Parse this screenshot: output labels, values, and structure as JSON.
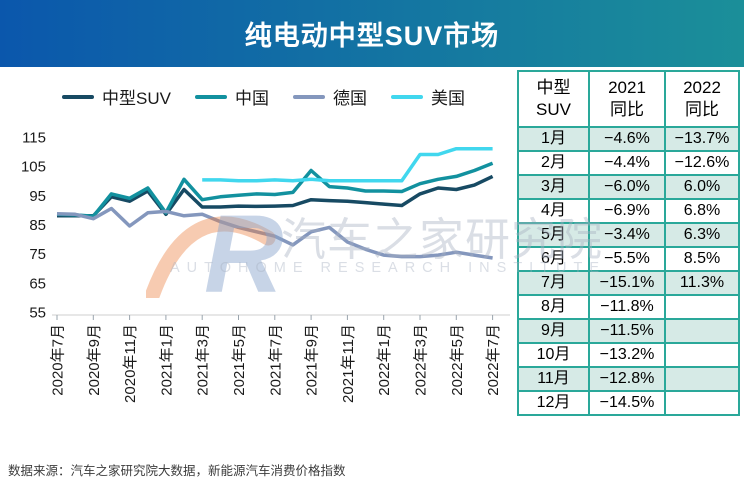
{
  "header": {
    "title": "纯电动中型SUV市场"
  },
  "legend": {
    "items": [
      {
        "label": "中型SUV",
        "color": "#174a63"
      },
      {
        "label": "中国",
        "color": "#12919f"
      },
      {
        "label": "德国",
        "color": "#8497bd"
      },
      {
        "label": "美国",
        "color": "#41d7ee"
      }
    ]
  },
  "chart_data": {
    "type": "line",
    "x": [
      "2020年7月",
      "2020年8月",
      "2020年9月",
      "2020年10月",
      "2020年11月",
      "2020年12月",
      "2021年1月",
      "2021年2月",
      "2021年3月",
      "2021年4月",
      "2021年5月",
      "2021年6月",
      "2021年7月",
      "2021年8月",
      "2021年9月",
      "2021年10月",
      "2021年11月",
      "2021年12月",
      "2022年1月",
      "2022年2月",
      "2022年3月",
      "2022年4月",
      "2022年5月",
      "2022年6月",
      "2022年7月"
    ],
    "x_tick_every": 2,
    "x_tick_labels": [
      "2020年7月",
      "2020年9月",
      "2020年11月",
      "2021年1月",
      "2021年3月",
      "2021年5月",
      "2021年7月",
      "2021年9月",
      "2021年11月",
      "2022年1月",
      "2022年3月",
      "2022年5月",
      "2022年7月"
    ],
    "ylim": [
      55,
      115
    ],
    "yticks": [
      115,
      105,
      95,
      85,
      75,
      65,
      55
    ],
    "grid": false,
    "legend_position": "top",
    "series": [
      {
        "name": "中型SUV",
        "color": "#174a63",
        "values": [
          88,
          88,
          88,
          94.5,
          93,
          96.5,
          88.5,
          97,
          91,
          91,
          91.3,
          91.2,
          91.3,
          91.5,
          93.5,
          93.2,
          93,
          92.5,
          92,
          91.5,
          95.5,
          97.5,
          97,
          98.5,
          101.5
        ]
      },
      {
        "name": "中国",
        "color": "#12919f",
        "values": [
          88.5,
          88.3,
          87.8,
          95.5,
          94,
          97.5,
          89,
          100.5,
          93.5,
          94.5,
          95,
          95.5,
          95.3,
          96,
          103.5,
          98,
          97.5,
          96.5,
          96.5,
          96.3,
          99,
          100.5,
          101.5,
          103.5,
          106
        ]
      },
      {
        "name": "德国",
        "color": "#8497bd",
        "values": [
          88.7,
          88.5,
          87,
          90.5,
          84.5,
          89,
          89.5,
          88,
          88.5,
          86,
          84,
          82.5,
          81,
          78,
          82.5,
          84,
          79,
          76.5,
          74.5,
          74,
          74,
          74.5,
          75.5,
          74.5,
          73.5
        ]
      },
      {
        "name": "美国",
        "color": "#41d7ee",
        "values": [
          null,
          null,
          null,
          null,
          null,
          null,
          null,
          null,
          100.3,
          100.3,
          100,
          100,
          100.3,
          100,
          100.5,
          100,
          100,
          100,
          100,
          100,
          109,
          109,
          111,
          111,
          111
        ]
      }
    ]
  },
  "table": {
    "headers": [
      "中型\nSUV",
      "2021\n同比",
      "2022\n同比"
    ],
    "rows": [
      [
        "1月",
        "−4.6%",
        "−13.7%"
      ],
      [
        "2月",
        "−4.4%",
        "−12.6%"
      ],
      [
        "3月",
        "−6.0%",
        "6.0%"
      ],
      [
        "4月",
        "−6.9%",
        "6.8%"
      ],
      [
        "5月",
        "−3.4%",
        "6.3%"
      ],
      [
        "6月",
        "−5.5%",
        "8.5%"
      ],
      [
        "7月",
        "−15.1%",
        "11.3%"
      ],
      [
        "8月",
        "−11.8%",
        ""
      ],
      [
        "9月",
        "−11.5%",
        ""
      ],
      [
        "10月",
        "−13.2%",
        ""
      ],
      [
        "11月",
        "−12.8%",
        ""
      ],
      [
        "12月",
        "−14.5%",
        ""
      ]
    ]
  },
  "watermark": {
    "logo": "AR",
    "text": "汽车之家研究院",
    "subtext": "AUTOHOME RESEARCH INSTITUTE"
  },
  "footer": {
    "source": "数据来源：汽车之家研究院大数据，新能源汽车消费价格指数"
  },
  "colors": {
    "header_gradient": [
      "#0b57ac",
      "#1b8f99"
    ],
    "table_border": "#2aa89a",
    "table_row_alt": "#d6eae6",
    "axis_line": "#cfcfcf",
    "text": "#1a1a1a"
  }
}
